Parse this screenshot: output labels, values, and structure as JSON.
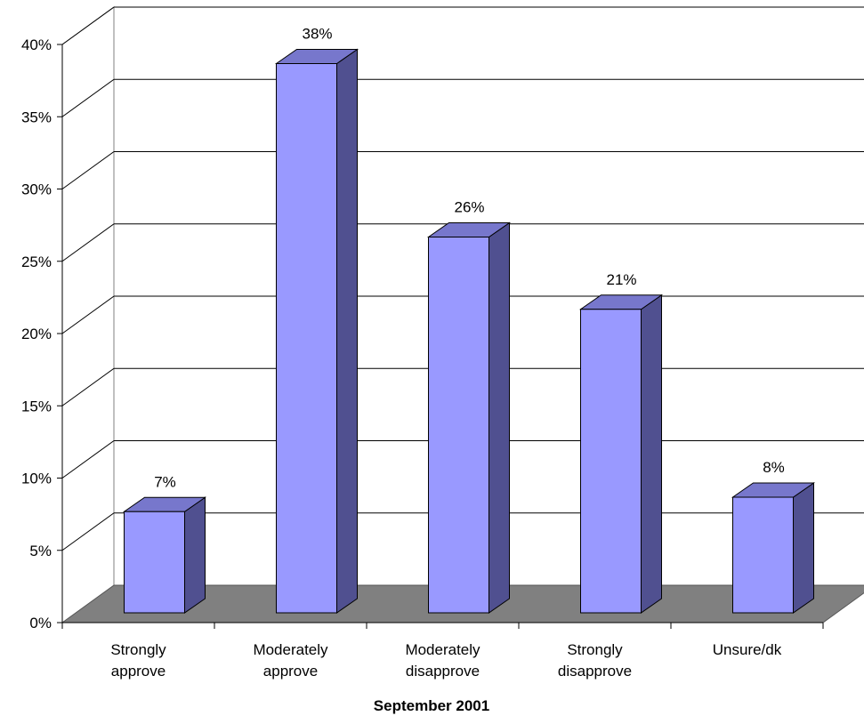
{
  "chart_data": {
    "type": "bar",
    "categories": [
      [
        "Strongly",
        "approve"
      ],
      [
        "Moderately",
        "approve"
      ],
      [
        "Moderately",
        "disapprove"
      ],
      [
        "Strongly",
        "disapprove"
      ],
      [
        "Unsure/dk"
      ]
    ],
    "values": [
      7,
      38,
      26,
      21,
      8
    ],
    "value_labels": [
      "7%",
      "38%",
      "26%",
      "21%",
      "8%"
    ],
    "y_ticks": [
      "0%",
      "5%",
      "10%",
      "15%",
      "20%",
      "25%",
      "30%",
      "35%",
      "40%"
    ],
    "ylim": [
      0,
      40
    ],
    "xlabel": "September 2001",
    "ylabel": "",
    "title": "",
    "grid": true,
    "three_d": true,
    "colors": {
      "bar_front": "#9999ff",
      "bar_top": "#7777cc",
      "bar_side": "#505090",
      "floor": "#808080",
      "gridline": "#000000"
    }
  }
}
